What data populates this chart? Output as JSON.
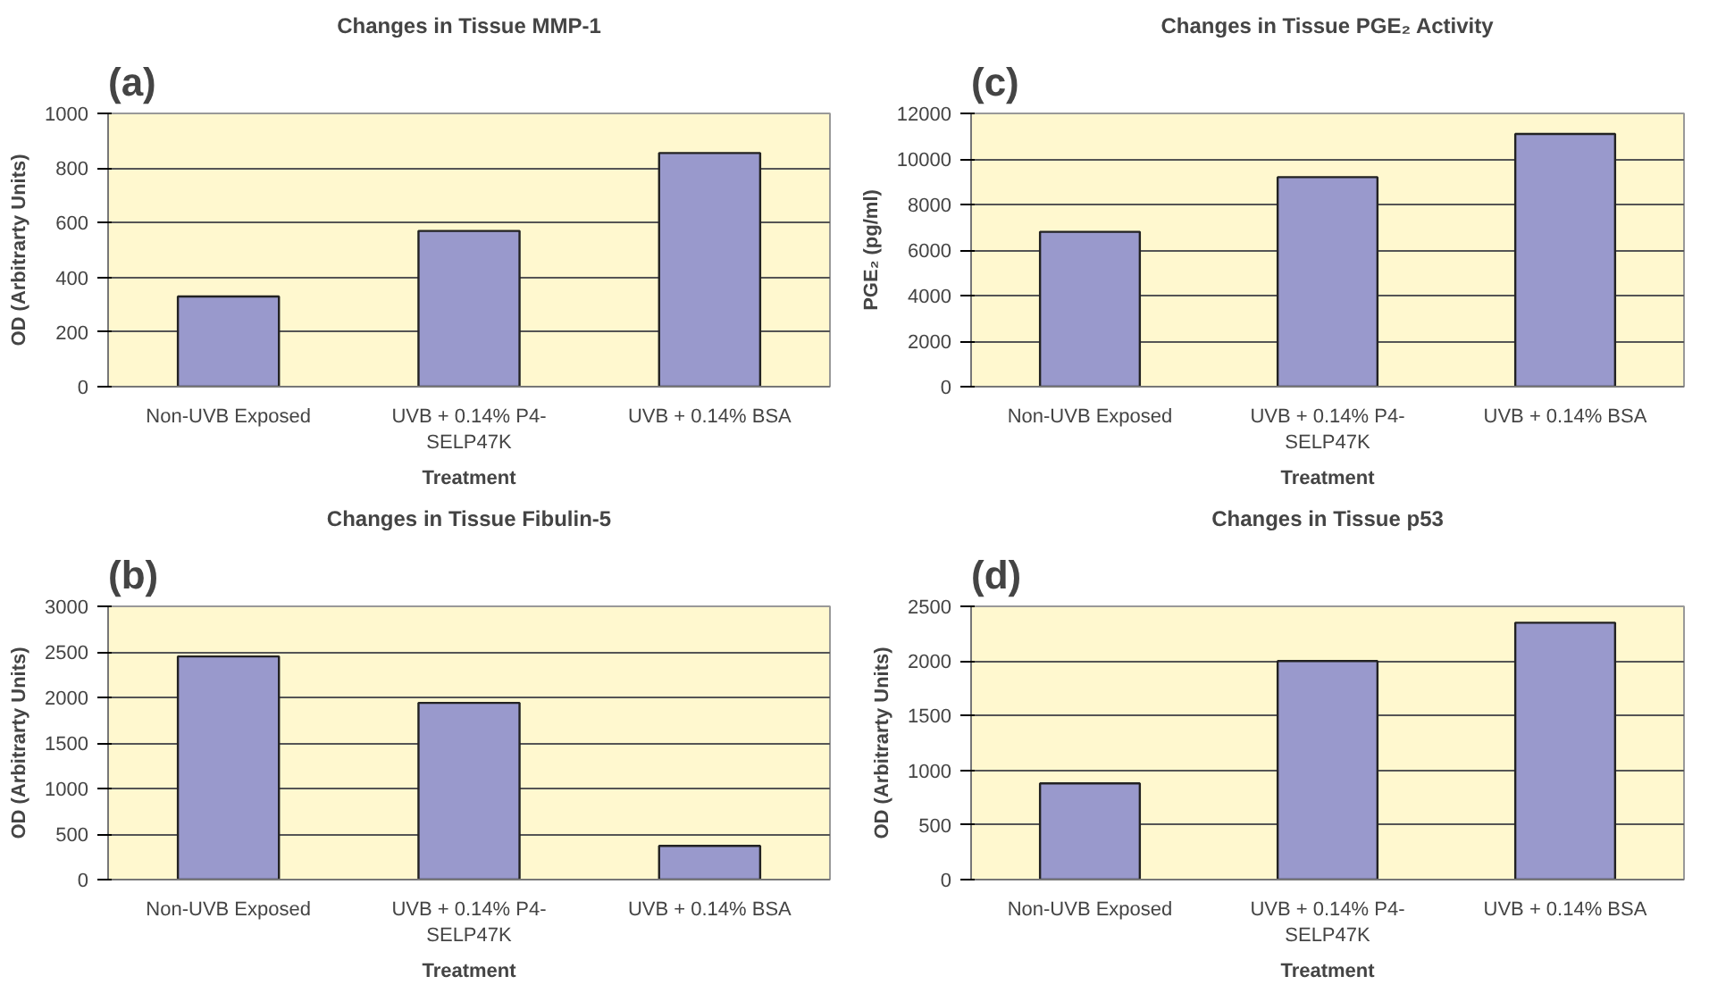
{
  "chart_data": [
    {
      "type": "bar",
      "annotations": [
        "(a)"
      ],
      "title": "Changes in Tissue MMP-1",
      "xlabel": "Treatment",
      "ylabel": "OD (Arbitrarty Units)",
      "categories": [
        "Non-UVB Exposed",
        "UVB + 0.14% P4-SELP47K",
        "UVB + 0.14% BSA"
      ],
      "values": [
        330,
        570,
        855
      ],
      "color": "#9999cc",
      "ylim": [
        0,
        1000
      ],
      "yticks": [
        0,
        200,
        400,
        600,
        800,
        1000
      ],
      "grid": "y"
    },
    {
      "type": "bar",
      "annotations": [
        "(c)"
      ],
      "title": "Changes in Tissue PGE₂ Activity",
      "xlabel": "Treatment",
      "ylabel": "PGE₂ (pg/ml)",
      "categories": [
        "Non-UVB Exposed",
        "UVB + 0.14% P4-SELP47K",
        "UVB + 0.14% BSA"
      ],
      "values": [
        6800,
        9200,
        11100
      ],
      "color": "#9999cc",
      "ylim": [
        0,
        12000
      ],
      "yticks": [
        0,
        2000,
        4000,
        6000,
        8000,
        10000,
        12000
      ],
      "grid": "y"
    },
    {
      "type": "bar",
      "annotations": [
        "(b)"
      ],
      "title": "Changes in Tissue Fibulin-5",
      "xlabel": "Treatment",
      "ylabel": "OD (Arbitrarty Units)",
      "categories": [
        "Non-UVB Exposed",
        "UVB + 0.14% P4-SELP47K",
        "UVB + 0.14% BSA"
      ],
      "values": [
        2450,
        1940,
        370
      ],
      "color": "#9999cc",
      "ylim": [
        0,
        3000
      ],
      "yticks": [
        0,
        500,
        1000,
        1500,
        2000,
        2500,
        3000
      ],
      "grid": "y"
    },
    {
      "type": "bar",
      "annotations": [
        "(d)"
      ],
      "title": "Changes in Tissue p53",
      "xlabel": "Treatment",
      "ylabel": "OD (Arbitrarty Units)",
      "categories": [
        "Non-UVB Exposed",
        "UVB + 0.14% P4-SELP47K",
        "UVB + 0.14% BSA"
      ],
      "values": [
        880,
        2000,
        2350
      ],
      "color": "#9999cc",
      "ylim": [
        0,
        2500
      ],
      "yticks": [
        0,
        500,
        1000,
        1500,
        2000,
        2500
      ],
      "grid": "y"
    }
  ]
}
